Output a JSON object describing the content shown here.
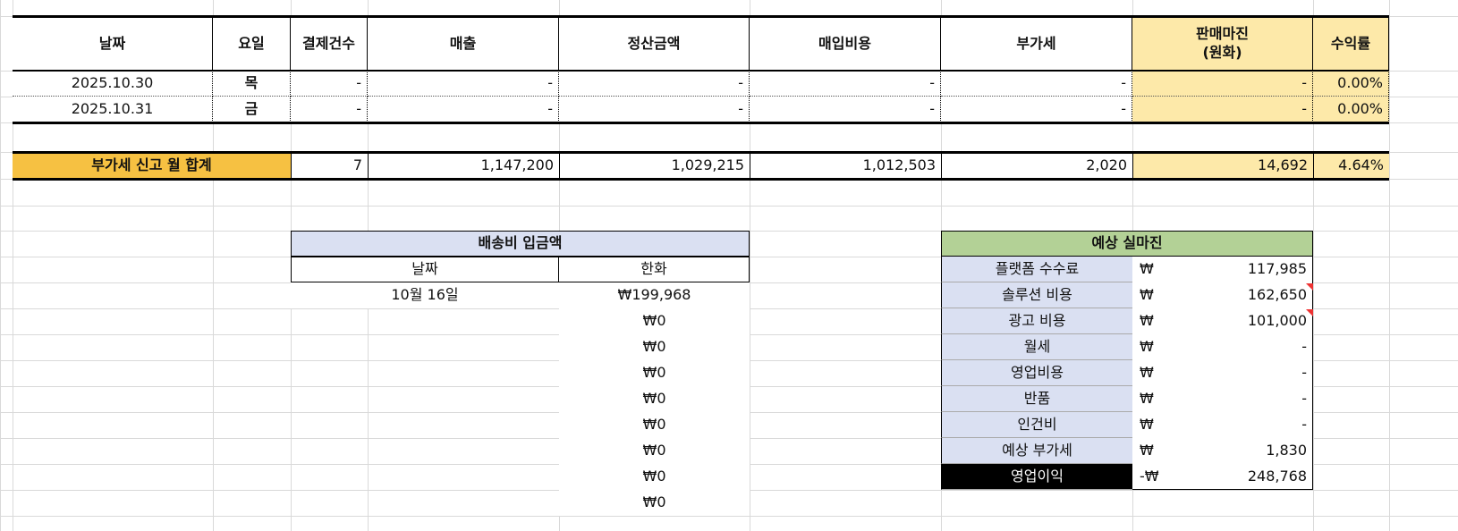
{
  "table": {
    "header": [
      "날짜",
      "요일",
      "결제건수",
      "매출",
      "정산금액",
      "매입비용",
      "부가세",
      "판매마진\n(원화)",
      "수익률"
    ],
    "rows": [
      [
        "2025.10.30",
        "목",
        "-",
        "-",
        "-",
        "-",
        "-",
        "-",
        "0.00%"
      ],
      [
        "2025.10.31",
        "금",
        "-",
        "-",
        "-",
        "-",
        "-",
        "-",
        "0.00%"
      ]
    ],
    "total": {
      "label": "부가세 신고 월 합계",
      "values": [
        "7",
        "1,147,200",
        "1,029,215",
        "1,012,503",
        "2,020",
        "14,692",
        "4.64%"
      ]
    }
  },
  "shipping": {
    "title": "배송비 입금액",
    "header": [
      "날짜",
      "한화"
    ],
    "dates": [
      "10월 16일"
    ],
    "amounts": [
      "₩199,968",
      "₩0",
      "₩0",
      "₩0",
      "₩0",
      "₩0",
      "₩0",
      "₩0",
      "₩0"
    ]
  },
  "margin": {
    "title": "예상 실마진",
    "rows": [
      {
        "label": "플랫폼 수수료",
        "currency": "₩",
        "amount": "117,985"
      },
      {
        "label": "솔루션 비용",
        "currency": "₩",
        "amount": "162,650"
      },
      {
        "label": "광고 비용",
        "currency": "₩",
        "amount": "101,000"
      },
      {
        "label": "월세",
        "currency": "₩",
        "amount": "-"
      },
      {
        "label": "영업비용",
        "currency": "₩",
        "amount": "-"
      },
      {
        "label": "반품",
        "currency": "₩",
        "amount": "-"
      },
      {
        "label": "인건비",
        "currency": "₩",
        "amount": "-"
      },
      {
        "label": "예상 부가세",
        "currency": "₩",
        "amount": "1,830"
      },
      {
        "label": "영업이익",
        "currency": "-₩",
        "amount": "248,768"
      }
    ]
  }
}
